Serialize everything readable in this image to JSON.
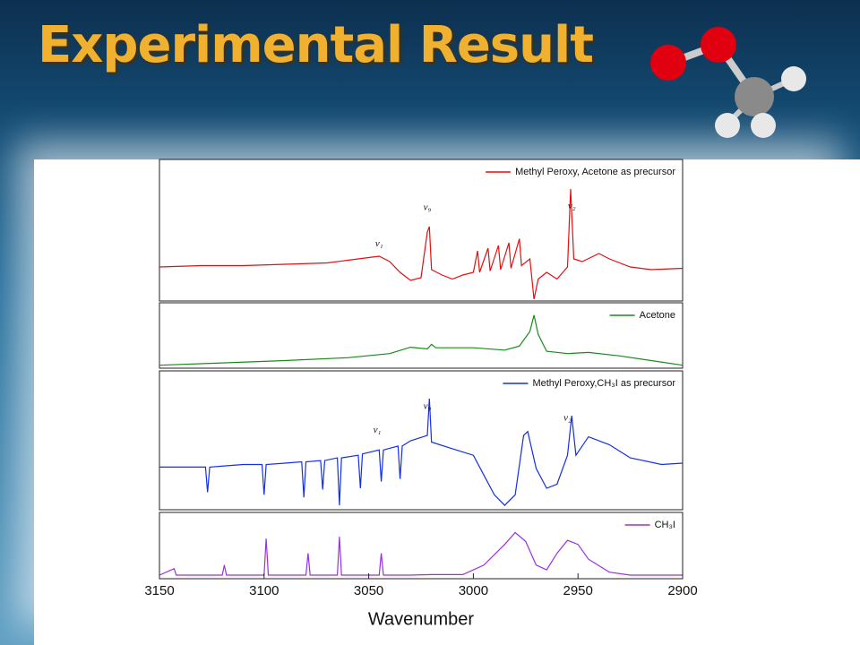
{
  "title": "Experimental Result",
  "chart_data": [
    {
      "type": "line",
      "xlim": [
        3150,
        2900
      ],
      "ylim": [
        0,
        100
      ],
      "x": [
        3150,
        3130,
        3110,
        3090,
        3070,
        3060,
        3050,
        3045,
        3040,
        3035,
        3030,
        3025,
        3022,
        3021,
        3020,
        3015,
        3010,
        3005,
        3000,
        2998,
        2997,
        2993,
        2992,
        2988,
        2987,
        2983,
        2982,
        2978,
        2977,
        2973,
        2971,
        2969,
        2965,
        2960,
        2955,
        2953.5,
        2952,
        2948,
        2940,
        2935,
        2925,
        2915,
        2900
      ],
      "series": [
        {
          "name": "Methyl Peroxy, Acetone as precursor",
          "color": "#e01010",
          "values": [
            24,
            25,
            25,
            26,
            27,
            29,
            31,
            32,
            28,
            20,
            14,
            16,
            50,
            54,
            22,
            18,
            15,
            18,
            20,
            36,
            20,
            38,
            21,
            40,
            22,
            42,
            23,
            45,
            25,
            30,
            0,
            15,
            20,
            15,
            24,
            82,
            30,
            28,
            34,
            30,
            24,
            22,
            23
          ]
        }
      ],
      "annotations": [
        {
          "text": "ν₁",
          "x": 3045,
          "y": 41
        },
        {
          "text": "ν₉",
          "x": 3022,
          "y": 68
        },
        {
          "text": "ν₂",
          "x": 2953,
          "y": 69
        }
      ]
    },
    {
      "type": "line",
      "xlim": [
        3150,
        2900
      ],
      "ylim": [
        0,
        100
      ],
      "x": [
        3150,
        3120,
        3090,
        3060,
        3040,
        3030,
        3022,
        3020,
        3018,
        3000,
        2985,
        2978,
        2973,
        2971,
        2969,
        2965,
        2955,
        2945,
        2930,
        2915,
        2900
      ],
      "series": [
        {
          "name": "Acetone",
          "color": "#1a8a1a",
          "values": [
            2,
            6,
            10,
            15,
            22,
            33,
            30,
            38,
            32,
            32,
            28,
            35,
            60,
            88,
            55,
            26,
            22,
            24,
            18,
            10,
            2
          ]
        }
      ]
    },
    {
      "type": "line",
      "xlim": [
        3150,
        2900
      ],
      "ylim": [
        0,
        100
      ],
      "x": [
        3150,
        3140,
        3128,
        3127,
        3126,
        3110,
        3101,
        3100,
        3099,
        3090,
        3082,
        3081,
        3080,
        3073,
        3072,
        3071,
        3065,
        3064,
        3063,
        3055,
        3054,
        3053,
        3045,
        3044,
        3043,
        3036,
        3035,
        3034,
        3030,
        3022,
        3021,
        3020,
        3010,
        3000,
        2995,
        2990,
        2985,
        2980,
        2976,
        2974,
        2970,
        2965,
        2960,
        2955,
        2953,
        2951,
        2945,
        2935,
        2925,
        2910,
        2900
      ],
      "series": [
        {
          "name": "Methyl Peroxy,CH₃I as precursor",
          "color": "#1530e0",
          "values": [
            31,
            31,
            31,
            12,
            31,
            33,
            33,
            10,
            33,
            34,
            35,
            8,
            35,
            36,
            14,
            36,
            38,
            2,
            38,
            40,
            15,
            41,
            44,
            20,
            44,
            47,
            22,
            47,
            51,
            55,
            83,
            50,
            45,
            40,
            25,
            10,
            2,
            10,
            55,
            58,
            30,
            15,
            18,
            40,
            70,
            40,
            54,
            48,
            38,
            33,
            34
          ]
        }
      ],
      "annotations": [
        {
          "text": "ν₁",
          "x": 3046,
          "y": 59
        },
        {
          "text": "ν₉",
          "x": 3022,
          "y": 77
        },
        {
          "text": "ν₂",
          "x": 2955,
          "y": 68
        }
      ]
    },
    {
      "type": "line",
      "xlim": [
        3150,
        2900
      ],
      "ylim": [
        0,
        100
      ],
      "x": [
        3150,
        3143,
        3142,
        3120,
        3119,
        3118,
        3100,
        3099,
        3098,
        3080,
        3079,
        3078,
        3065,
        3064,
        3063,
        3050,
        3045,
        3044,
        3043,
        3030,
        3020,
        3005,
        2995,
        2985,
        2980,
        2975,
        2970,
        2965,
        2960,
        2955,
        2950,
        2945,
        2935,
        2925,
        2900
      ],
      "series": [
        {
          "name": "CH₃I",
          "color": "#9a30e0",
          "values": [
            3,
            14,
            3,
            3,
            20,
            3,
            3,
            65,
            3,
            3,
            40,
            3,
            3,
            68,
            3,
            3,
            3,
            40,
            3,
            3,
            4,
            4,
            20,
            55,
            75,
            60,
            20,
            12,
            40,
            62,
            55,
            30,
            8,
            3,
            3
          ]
        }
      ],
      "xticks": [
        3150,
        3100,
        3050,
        3000,
        2950,
        2900
      ],
      "xlabel": "Wavenumber"
    }
  ]
}
